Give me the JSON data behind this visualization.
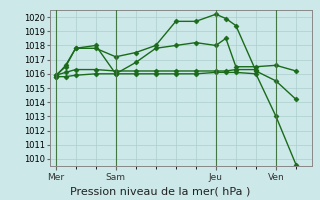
{
  "title": "Pression niveau de la mer( hPa )",
  "bg_color": "#cce8e8",
  "line_color": "#1a6b1a",
  "grid_color": "#aacccc",
  "ylim": [
    1009.5,
    1020.5
  ],
  "yticks": [
    1010,
    1011,
    1012,
    1013,
    1014,
    1015,
    1016,
    1017,
    1018,
    1019,
    1020
  ],
  "x_ticks_labels": [
    "Mer",
    "Sam",
    "Jeu",
    "Ven"
  ],
  "x_ticks_pos": [
    0,
    3,
    8,
    11
  ],
  "xlim": [
    -0.3,
    12.8
  ],
  "series": [
    {
      "x": [
        0,
        0.5,
        1,
        2,
        3,
        4,
        5,
        6,
        7,
        8,
        8.5,
        9,
        10,
        11,
        12
      ],
      "y": [
        1015.8,
        1016.6,
        1017.8,
        1017.8,
        1017.2,
        1017.5,
        1018.0,
        1019.7,
        1019.7,
        1020.2,
        1019.9,
        1019.4,
        1016.2,
        1015.5,
        1014.2
      ],
      "marker": "D",
      "ms": 2.5,
      "lw": 1.0
    },
    {
      "x": [
        0,
        0.5,
        1,
        2,
        3,
        4,
        5,
        6,
        7,
        8,
        8.5,
        9,
        10,
        11,
        12
      ],
      "y": [
        1015.9,
        1016.5,
        1017.8,
        1018.0,
        1016.0,
        1016.8,
        1017.8,
        1018.0,
        1018.2,
        1018.0,
        1018.5,
        1016.5,
        1016.5,
        1016.6,
        1016.2
      ],
      "marker": "D",
      "ms": 2.5,
      "lw": 1.0
    },
    {
      "x": [
        0,
        0.5,
        1,
        2,
        3,
        4,
        5,
        6,
        7,
        8,
        8.5,
        9,
        10
      ],
      "y": [
        1015.9,
        1016.1,
        1016.3,
        1016.3,
        1016.2,
        1016.2,
        1016.2,
        1016.2,
        1016.2,
        1016.2,
        1016.2,
        1016.3,
        1016.3
      ],
      "marker": "D",
      "ms": 2.5,
      "lw": 1.0
    },
    {
      "x": [
        0,
        0.5,
        1,
        2,
        3,
        4,
        5,
        6,
        7,
        8,
        8.5,
        9,
        10,
        11,
        12
      ],
      "y": [
        1015.8,
        1015.8,
        1015.9,
        1016.0,
        1016.0,
        1016.0,
        1016.0,
        1016.0,
        1016.0,
        1016.1,
        1016.1,
        1016.1,
        1016.0,
        1013.0,
        1009.6
      ],
      "marker": "D",
      "ms": 2.5,
      "lw": 1.0
    }
  ],
  "vlines_x": [
    0,
    3,
    8,
    11
  ],
  "vline_color": "#447744",
  "title_fontsize": 8,
  "tick_fontsize": 6.5,
  "ytick_fontsize": 6
}
